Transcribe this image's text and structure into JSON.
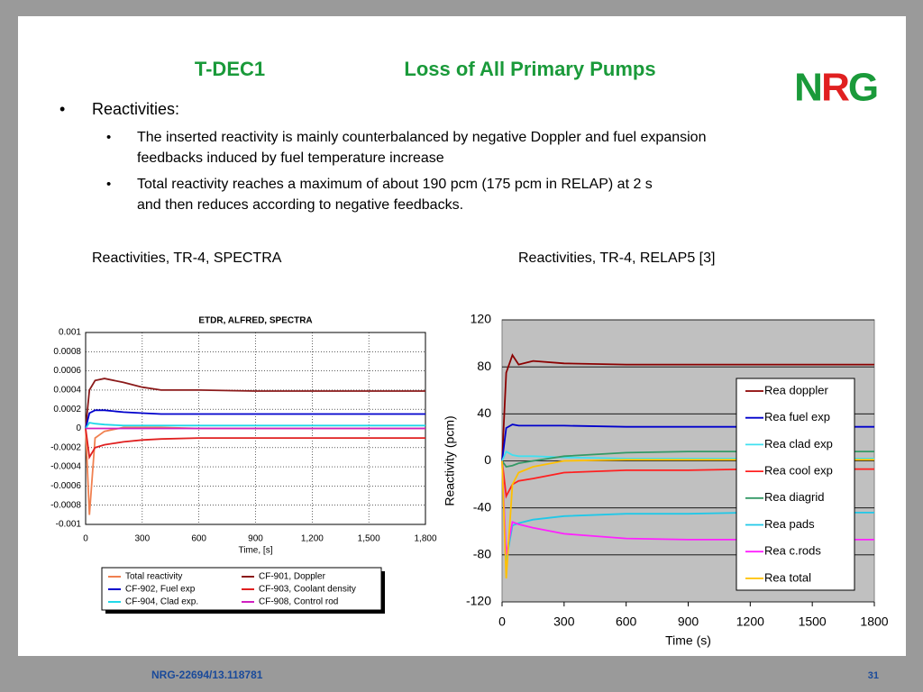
{
  "header": {
    "code": "T-DEC1",
    "title": "Loss of All Primary Pumps",
    "logo": [
      "N",
      "R",
      "G"
    ]
  },
  "bullets": [
    {
      "text": "Reactivities:",
      "sub": [
        "The inserted reactivity is mainly counterbalanced by negative Doppler and fuel expansion feedbacks induced by fuel temperature increase",
        "Total reactivity reaches a maximum of about 190 pcm (175 pcm in RELAP) at 2 s and then reduces  according to negative feedbacks."
      ]
    }
  ],
  "captions": [
    "Reactivities, TR-4, SPECTRA",
    "Reactivities, TR-4, RELAP5 [3]"
  ],
  "footer": {
    "ref": "NRG-22694/13.118781",
    "page": "31"
  },
  "chart_data": [
    {
      "type": "line",
      "title": "ETDR, ALFRED, SPECTRA",
      "x_label": "Time, [s]",
      "x": [
        0,
        20,
        50,
        100,
        200,
        300,
        400,
        600,
        900,
        1200,
        1500,
        1800
      ],
      "xlim": [
        0,
        1800
      ],
      "xticks": [
        0,
        300,
        600,
        900,
        {
          "value": 1200,
          "label": "1,200"
        },
        {
          "value": 1500,
          "label": "1,500"
        },
        {
          "value": 1800,
          "label": "1,800"
        }
      ],
      "ylim": [
        -0.001,
        0.001
      ],
      "yticks": [
        -0.001,
        -0.0008,
        -0.0006,
        -0.0004,
        -0.0002,
        0,
        0.0002,
        0.0004,
        0.0006,
        0.0008,
        0.001
      ],
      "grid": true,
      "series": [
        {
          "name": "Total reactivity",
          "color": "#f08050",
          "values": [
            0,
            -0.0009,
            -0.0001,
            -3e-05,
            1e-05,
            1e-05,
            1e-05,
            0,
            0,
            0,
            0,
            0
          ]
        },
        {
          "name": "CF-901, Doppler",
          "color": "#8b1a1a",
          "values": [
            0,
            0.0004,
            0.0005,
            0.00052,
            0.00048,
            0.00043,
            0.0004,
            0.0004,
            0.00039,
            0.00039,
            0.00039,
            0.00039
          ]
        },
        {
          "name": "CF-902, Fuel exp",
          "color": "#0000cc",
          "values": [
            0,
            0.00016,
            0.00019,
            0.00019,
            0.00017,
            0.00016,
            0.00015,
            0.00015,
            0.00015,
            0.00015,
            0.00015,
            0.00015
          ]
        },
        {
          "name": "CF-903, Coolant density",
          "color": "#e02020",
          "values": [
            0,
            -0.0003,
            -0.0002,
            -0.00017,
            -0.00014,
            -0.00012,
            -0.00011,
            -0.0001,
            -0.0001,
            -0.0001,
            -0.0001,
            -0.0001
          ]
        },
        {
          "name": "CF-904, Clad exp.",
          "color": "#20d8e8",
          "values": [
            0,
            6e-05,
            5e-05,
            4e-05,
            3e-05,
            3e-05,
            3e-05,
            3e-05,
            3e-05,
            3e-05,
            3e-05,
            3e-05
          ]
        },
        {
          "name": "CF-908, Control rod",
          "color": "#d020c0",
          "values": [
            0,
            0,
            0,
            0,
            0,
            0,
            0,
            0,
            0,
            0,
            0,
            0
          ]
        }
      ]
    },
    {
      "type": "line",
      "x_label": "Time (s)",
      "y_label": "Reactivity (pcm)",
      "x": [
        0,
        20,
        50,
        80,
        150,
        300,
        600,
        900,
        1200,
        1500,
        1800
      ],
      "xlim": [
        0,
        1800
      ],
      "xticks": [
        0,
        300,
        600,
        900,
        1200,
        1500,
        1800
      ],
      "ylim": [
        -120,
        120
      ],
      "yticks": [
        -120,
        -80,
        -40,
        0,
        40,
        80,
        120
      ],
      "grid": true,
      "series": [
        {
          "name": "Rea doppler",
          "color": "#8b0000",
          "values": [
            0,
            75,
            90,
            82,
            85,
            83,
            82,
            82,
            82,
            82,
            82
          ]
        },
        {
          "name": "Rea fuel exp",
          "color": "#0000cc",
          "values": [
            0,
            28,
            31,
            30,
            30,
            30,
            29,
            29,
            29,
            29,
            29
          ]
        },
        {
          "name": "Rea clad exp",
          "color": "#40e0f0",
          "values": [
            0,
            8,
            5,
            4,
            4,
            3,
            2,
            2,
            2,
            2,
            2
          ]
        },
        {
          "name": "Rea cool exp",
          "color": "#ff2020",
          "values": [
            0,
            -30,
            -20,
            -17,
            -15,
            -10,
            -8,
            -8,
            -7,
            -7,
            -7
          ]
        },
        {
          "name": "Rea diagrid",
          "color": "#339966",
          "values": [
            0,
            -5,
            -4,
            -2,
            0,
            4,
            7,
            8,
            8,
            8,
            8
          ]
        },
        {
          "name": "Rea pads",
          "color": "#20c8e8",
          "values": [
            0,
            -85,
            -55,
            -53,
            -50,
            -47,
            -45,
            -45,
            -44,
            -44,
            -44
          ]
        },
        {
          "name": "Rea c.rods",
          "color": "#ff20ff",
          "values": [
            0,
            -80,
            -52,
            -54,
            -57,
            -62,
            -66,
            -67,
            -67,
            -67,
            -67
          ]
        },
        {
          "name": "Rea total",
          "color": "#ffc000",
          "values": [
            0,
            -100,
            -20,
            -10,
            -5,
            0,
            1,
            1,
            1,
            1,
            1
          ]
        }
      ]
    }
  ]
}
